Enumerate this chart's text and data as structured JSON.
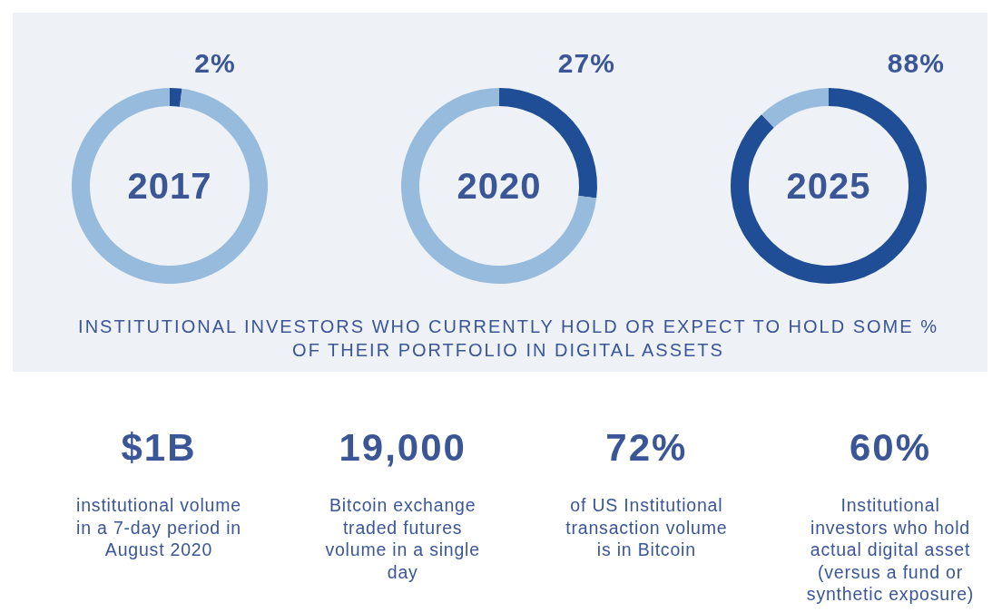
{
  "chart_data": [
    {
      "type": "donut",
      "title": "2017",
      "categories": [
        null,
        null
      ],
      "values": [
        2,
        98
      ],
      "colors": [
        "#1f4e96",
        "#97bbdd"
      ],
      "value_labels": [
        "2%",
        null
      ]
    },
    {
      "type": "donut",
      "title": "2020",
      "categories": [
        null,
        null
      ],
      "values": [
        27,
        73
      ],
      "colors": [
        "#1f4e96",
        "#97bbdd"
      ],
      "value_labels": [
        "27%",
        null
      ]
    },
    {
      "type": "donut",
      "title": "2025",
      "categories": [
        null,
        null
      ],
      "values": [
        88,
        12
      ],
      "colors": [
        "#1f4e96",
        "#97bbdd"
      ],
      "value_labels": [
        "88%",
        null
      ]
    },
    {
      "type": "other",
      "annotations": [
        "INSTITUTIONAL INVESTORS WHO CURRENTLY HOLD OR EXPECT TO HOLD SOME %\nOF THEIR PORTFOLIO IN DIGITAL ASSETS"
      ]
    },
    {
      "type": "other",
      "annotations": [
        "$1B",
        "institutional volume\nin a 7-day period in\nAugust 2020",
        "19,000",
        "Bitcoin exchange\ntraded futures\nvolume in a single\nday",
        "72%",
        "of US Institutional\ntransaction volume\nis in Bitcoin",
        "60%",
        "Institutional\ninvestors who hold\nactual digital asset\n(versus a fund or\nsynthetic exposure)"
      ]
    }
  ]
}
